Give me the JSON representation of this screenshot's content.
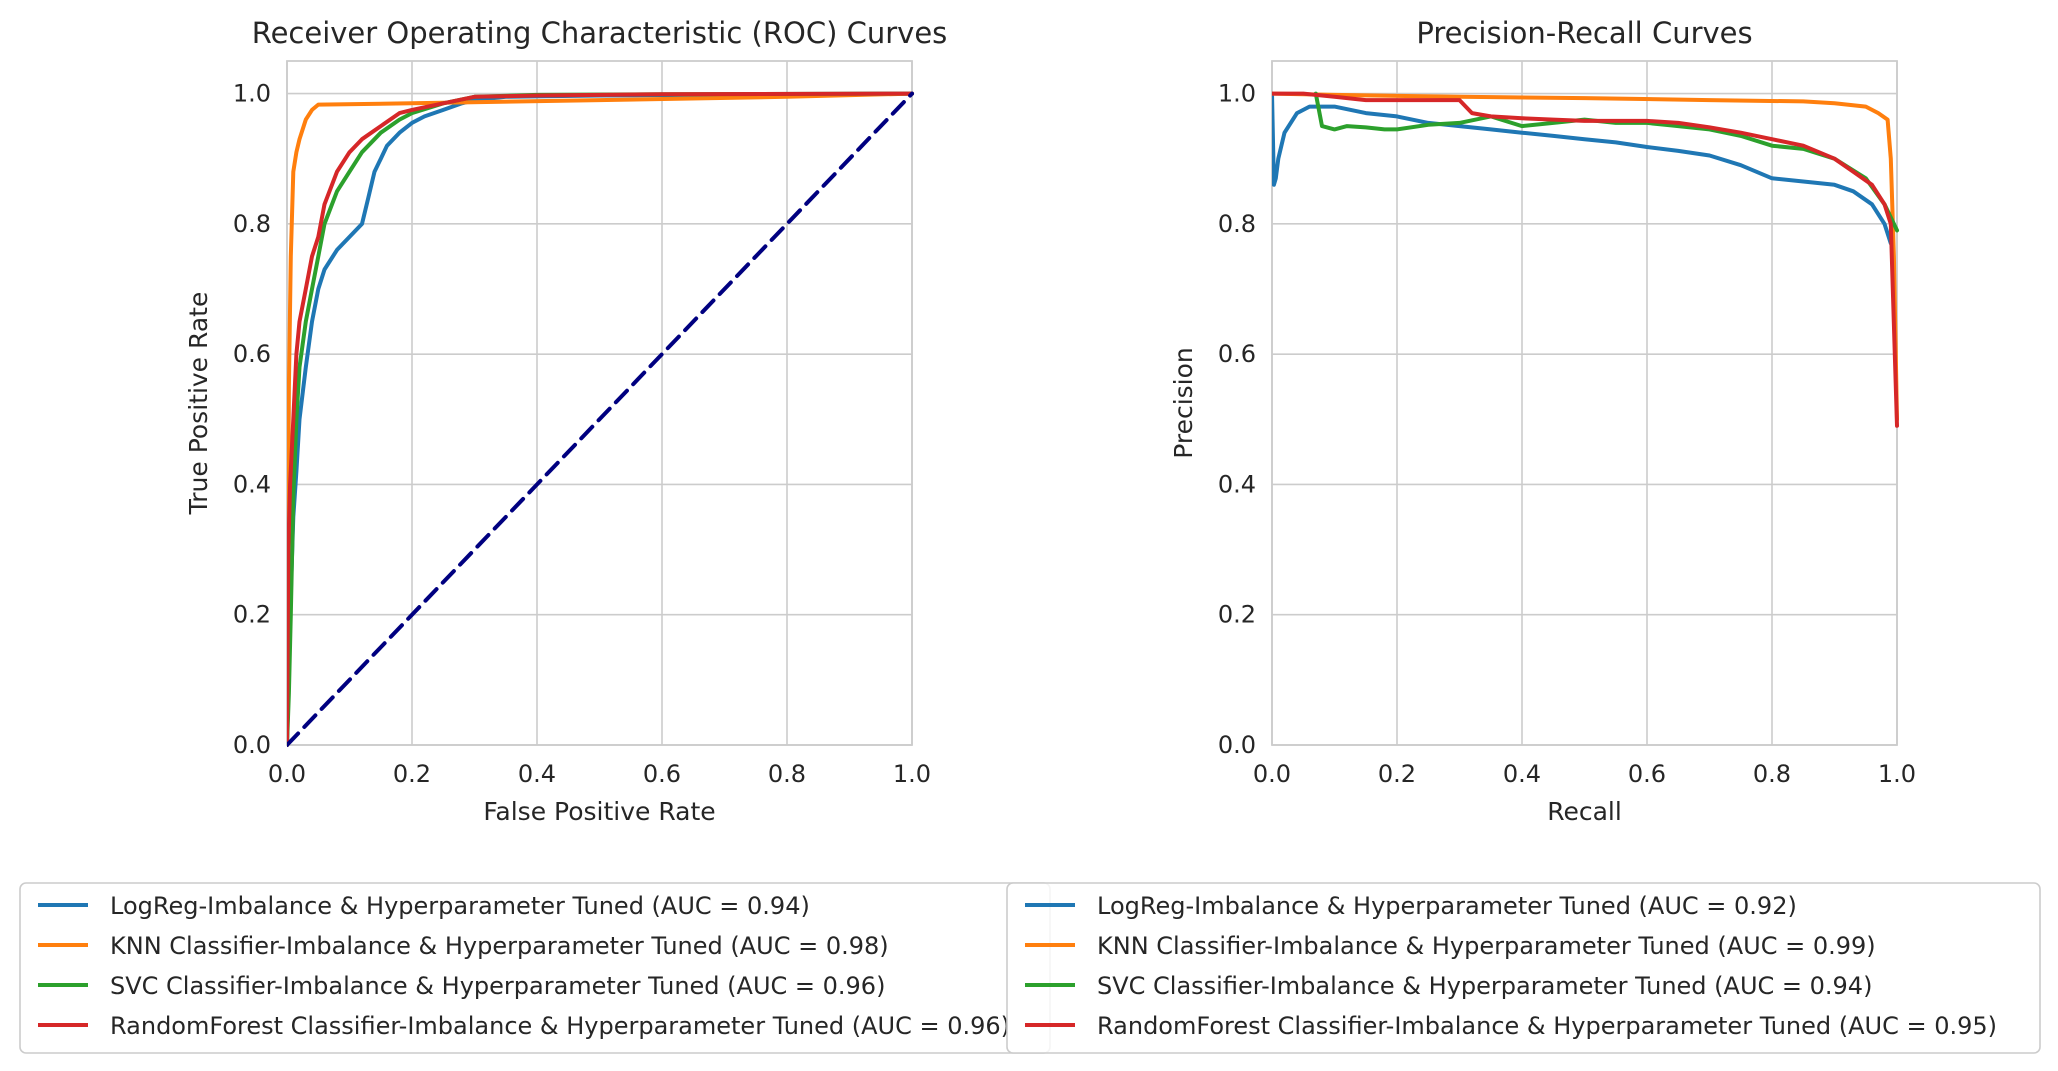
{
  "chart_data": [
    {
      "type": "line",
      "title": "Receiver Operating Characteristic (ROC) Curves",
      "xlabel": "False Positive Rate",
      "ylabel": "True Positive Rate",
      "xlim": [
        0.0,
        1.0
      ],
      "ylim": [
        0.0,
        1.05
      ],
      "xticks": [
        "0.0",
        "0.2",
        "0.4",
        "0.6",
        "0.8",
        "1.0"
      ],
      "yticks": [
        "0.0",
        "0.2",
        "0.4",
        "0.6",
        "0.8",
        "1.0"
      ],
      "grid": true,
      "legend_placement": "below-left",
      "series": [
        {
          "name": "LogReg-Imbalance & Hyperparameter Tuned (AUC = 0.94)",
          "color": "#1f77b4",
          "x": [
            0,
            0.005,
            0.01,
            0.015,
            0.02,
            0.03,
            0.04,
            0.05,
            0.06,
            0.08,
            0.1,
            0.12,
            0.13,
            0.14,
            0.15,
            0.16,
            0.18,
            0.2,
            0.22,
            0.25,
            0.28,
            0.3,
            0.35,
            0.5,
            0.8,
            1.0
          ],
          "y": [
            0,
            0.2,
            0.35,
            0.42,
            0.5,
            0.58,
            0.65,
            0.7,
            0.73,
            0.76,
            0.78,
            0.8,
            0.84,
            0.88,
            0.9,
            0.92,
            0.94,
            0.955,
            0.965,
            0.975,
            0.985,
            0.99,
            0.995,
            0.997,
            0.999,
            1.0
          ]
        },
        {
          "name": "KNN Classifier-Imbalance & Hyperparameter Tuned (AUC = 0.98)",
          "color": "#ff7f0e",
          "x": [
            0,
            0.003,
            0.006,
            0.01,
            0.015,
            0.02,
            0.03,
            0.04,
            0.05,
            0.2,
            0.5,
            0.8,
            1.0
          ],
          "y": [
            0,
            0.55,
            0.75,
            0.88,
            0.91,
            0.93,
            0.96,
            0.975,
            0.983,
            0.985,
            0.99,
            0.995,
            1.0
          ]
        },
        {
          "name": "SVC Classifier-Imbalance & Hyperparameter Tuned (AUC = 0.96)",
          "color": "#2ca02c",
          "x": [
            0,
            0.003,
            0.006,
            0.01,
            0.015,
            0.02,
            0.03,
            0.04,
            0.05,
            0.06,
            0.08,
            0.1,
            0.12,
            0.15,
            0.18,
            0.2,
            0.25,
            0.3,
            0.4,
            0.6,
            1.0
          ],
          "y": [
            0,
            0.08,
            0.2,
            0.38,
            0.5,
            0.58,
            0.65,
            0.7,
            0.75,
            0.8,
            0.85,
            0.88,
            0.91,
            0.94,
            0.96,
            0.97,
            0.985,
            0.995,
            0.998,
            0.999,
            1.0
          ]
        },
        {
          "name": "RandomForest Classifier-Imbalance & Hyperparameter Tuned (AUC = 0.96)",
          "color": "#d62728",
          "x": [
            0,
            0.002,
            0.005,
            0.01,
            0.015,
            0.02,
            0.03,
            0.04,
            0.05,
            0.06,
            0.08,
            0.1,
            0.12,
            0.15,
            0.18,
            0.2,
            0.25,
            0.3,
            0.4,
            0.6,
            1.0
          ],
          "y": [
            0,
            0.3,
            0.4,
            0.5,
            0.6,
            0.65,
            0.7,
            0.75,
            0.78,
            0.83,
            0.88,
            0.91,
            0.93,
            0.95,
            0.97,
            0.975,
            0.985,
            0.995,
            0.997,
            0.999,
            1.0
          ]
        },
        {
          "name": "",
          "color": "#000080",
          "dashed": true,
          "x": [
            0,
            1
          ],
          "y": [
            0,
            1
          ]
        }
      ]
    },
    {
      "type": "line",
      "title": "Precision-Recall Curves",
      "xlabel": "Recall",
      "ylabel": "Precision",
      "xlim": [
        0.0,
        1.0
      ],
      "ylim": [
        0.0,
        1.05
      ],
      "xticks": [
        "0.0",
        "0.2",
        "0.4",
        "0.6",
        "0.8",
        "1.0"
      ],
      "yticks": [
        "0.0",
        "0.2",
        "0.4",
        "0.6",
        "0.8",
        "1.0"
      ],
      "grid": true,
      "legend_placement": "below-right",
      "series": [
        {
          "name": "LogReg-Imbalance & Hyperparameter Tuned (AUC = 0.92)",
          "color": "#1f77b4",
          "x": [
            0,
            0.003,
            0.006,
            0.01,
            0.02,
            0.04,
            0.06,
            0.1,
            0.15,
            0.2,
            0.25,
            0.3,
            0.35,
            0.4,
            0.45,
            0.5,
            0.55,
            0.6,
            0.65,
            0.7,
            0.75,
            0.8,
            0.85,
            0.9,
            0.93,
            0.96,
            0.98,
            0.99
          ],
          "y": [
            1.0,
            0.86,
            0.87,
            0.9,
            0.94,
            0.97,
            0.98,
            0.98,
            0.97,
            0.965,
            0.955,
            0.95,
            0.945,
            0.94,
            0.935,
            0.93,
            0.925,
            0.918,
            0.912,
            0.905,
            0.89,
            0.87,
            0.865,
            0.86,
            0.85,
            0.83,
            0.8,
            0.77
          ]
        },
        {
          "name": "KNN Classifier-Imbalance & Hyperparameter Tuned (AUC = 0.99)",
          "color": "#ff7f0e",
          "x": [
            0,
            0.1,
            0.3,
            0.5,
            0.7,
            0.85,
            0.9,
            0.95,
            0.97,
            0.985,
            0.99,
            0.995,
            1.0
          ],
          "y": [
            1.0,
            0.998,
            0.995,
            0.993,
            0.99,
            0.988,
            0.985,
            0.98,
            0.97,
            0.96,
            0.9,
            0.75,
            0.5
          ]
        },
        {
          "name": "SVC Classifier-Imbalance & Hyperparameter Tuned (AUC = 0.94)",
          "color": "#2ca02c",
          "x": [
            0.07,
            0.08,
            0.1,
            0.12,
            0.15,
            0.18,
            0.2,
            0.25,
            0.3,
            0.35,
            0.4,
            0.45,
            0.5,
            0.55,
            0.6,
            0.65,
            0.7,
            0.75,
            0.8,
            0.85,
            0.9,
            0.95,
            0.98,
            1.0
          ],
          "y": [
            1.0,
            0.95,
            0.945,
            0.95,
            0.948,
            0.945,
            0.945,
            0.952,
            0.955,
            0.965,
            0.95,
            0.955,
            0.96,
            0.955,
            0.955,
            0.95,
            0.945,
            0.935,
            0.92,
            0.915,
            0.9,
            0.87,
            0.83,
            0.79
          ]
        },
        {
          "name": "RandomForest Classifier-Imbalance & Hyperparameter Tuned (AUC = 0.95)",
          "color": "#d62728",
          "x": [
            0,
            0.05,
            0.1,
            0.15,
            0.2,
            0.25,
            0.3,
            0.32,
            0.35,
            0.4,
            0.45,
            0.5,
            0.55,
            0.6,
            0.65,
            0.7,
            0.75,
            0.8,
            0.85,
            0.9,
            0.93,
            0.96,
            0.98,
            0.99,
            1.0
          ],
          "y": [
            1.0,
            1.0,
            0.995,
            0.99,
            0.99,
            0.99,
            0.99,
            0.97,
            0.965,
            0.962,
            0.96,
            0.958,
            0.958,
            0.958,
            0.955,
            0.948,
            0.94,
            0.93,
            0.92,
            0.9,
            0.88,
            0.86,
            0.83,
            0.8,
            0.49
          ]
        }
      ]
    }
  ]
}
